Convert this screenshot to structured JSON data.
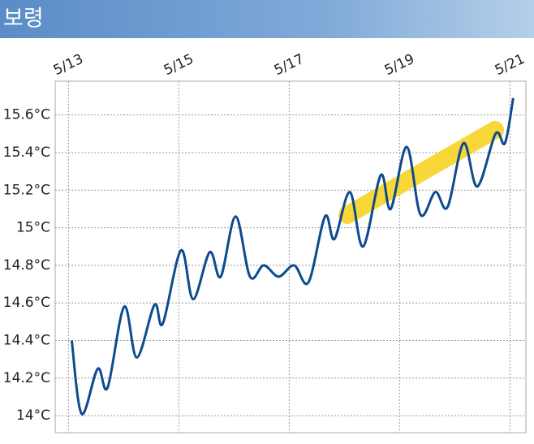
{
  "chart_data": {
    "type": "line",
    "title": "보령",
    "x": [
      13.06,
      13.24,
      13.53,
      13.71,
      14.01,
      14.24,
      14.56,
      14.71,
      15.04,
      15.26,
      15.56,
      15.76,
      16.03,
      16.29,
      16.54,
      16.81,
      17.09,
      17.35,
      17.65,
      17.82,
      18.1,
      18.34,
      18.66,
      18.84,
      19.13,
      19.38,
      19.65,
      19.87,
      20.16,
      20.41,
      20.74,
      20.91,
      21.06
    ],
    "series": [
      {
        "color": "#0d4a8f",
        "values": [
          14.4,
          14.01,
          14.25,
          14.15,
          14.58,
          14.31,
          14.59,
          14.49,
          14.88,
          14.62,
          14.87,
          14.74,
          15.06,
          14.74,
          14.8,
          14.74,
          14.8,
          14.71,
          15.06,
          14.94,
          15.19,
          14.9,
          15.28,
          15.1,
          15.43,
          15.07,
          15.19,
          15.11,
          15.45,
          15.22,
          15.5,
          15.45,
          15.69
        ]
      }
    ],
    "xlim": [
      12.76,
      21.29
    ],
    "xticks": [
      {
        "value": 13,
        "label": "5/13"
      },
      {
        "value": 15,
        "label": "5/15"
      },
      {
        "value": 17,
        "label": "5/17"
      },
      {
        "value": 19,
        "label": "5/19"
      },
      {
        "value": 21,
        "label": "5/21"
      }
    ],
    "ylim": [
      13.91,
      15.78
    ],
    "yticks": [
      {
        "value": 14,
        "label": "14°C"
      },
      {
        "value": 14.2,
        "label": "14.2°C"
      },
      {
        "value": 14.4,
        "label": "14.4°C"
      },
      {
        "value": 14.6,
        "label": "14.6°C"
      },
      {
        "value": 14.8,
        "label": "14.8°C"
      },
      {
        "value": 15,
        "label": "15°C"
      },
      {
        "value": 15.2,
        "label": "15.2°C"
      },
      {
        "value": 15.4,
        "label": "15.4°C"
      },
      {
        "value": 15.6,
        "label": "15.6°C"
      }
    ],
    "grid": true
  }
}
